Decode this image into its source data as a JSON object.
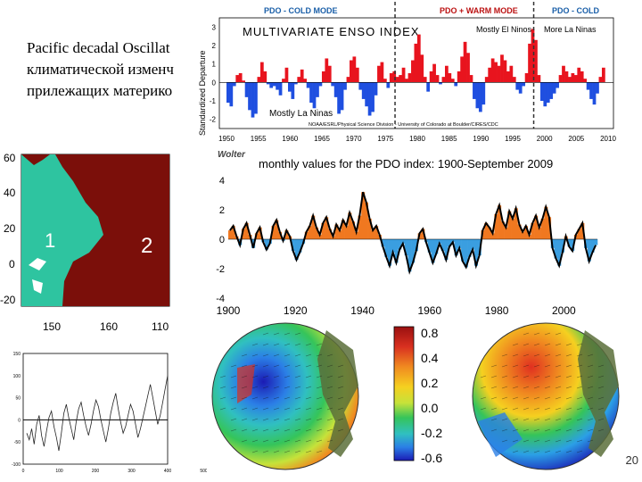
{
  "slide": {
    "title_lines": [
      "Pacific decadal Oscillat",
      "климатической изменч",
      "прилежащих материко"
    ],
    "page_number": "20"
  },
  "chart_data": [
    {
      "type": "map",
      "name": "region-map",
      "y_ticks": [
        "60",
        "40",
        "20",
        "0",
        "-20"
      ],
      "x_ticks": [
        "150",
        "160",
        "110"
      ],
      "region_labels": [
        "1",
        "2"
      ],
      "colors": {
        "region1": "#2ec4a0",
        "region2": "#7b0f0a"
      }
    },
    {
      "type": "line",
      "name": "bottom-left-series",
      "y_ticks": [
        "150",
        "100",
        "50",
        "0",
        "-50",
        "-100"
      ],
      "x_ticks": [
        "0",
        "100",
        "200",
        "300",
        "400",
        "500"
      ],
      "ylim": [
        -100,
        150
      ],
      "xlim": [
        0,
        500
      ],
      "values": [
        -30,
        -45,
        -20,
        -55,
        -10,
        10,
        -35,
        -60,
        -25,
        5,
        20,
        -15,
        -40,
        -70,
        -30,
        15,
        35,
        5,
        -20,
        -45,
        -5,
        25,
        40,
        10,
        -15,
        -35,
        -10,
        20,
        45,
        30,
        0,
        -25,
        -50,
        -20,
        15,
        40,
        60,
        25,
        -5,
        -30,
        -15,
        10,
        35,
        20,
        -10,
        -40,
        -20,
        5,
        30,
        55,
        80,
        50,
        20,
        -10,
        10,
        40,
        70,
        100
      ]
    },
    {
      "type": "area",
      "name": "mei-chart",
      "title": "MULTIVARIATE ENSO INDEX",
      "ylabel": "Standardized Departure",
      "mode_labels": [
        "PDO - COLD MODE",
        "PDO + WARM MODE",
        "PDO - COLD"
      ],
      "annotations": [
        "Mostly El Ninos",
        "More La Ninas",
        "Mostly La Ninas"
      ],
      "source": "NOAA/ESRL/Physical Science Division - University of Colorado at Boulder/CIRES/CDC",
      "author": "Wolter",
      "x_ticks": [
        "1950",
        "1955",
        "1960",
        "1965",
        "1970",
        "1975",
        "1980",
        "1985",
        "1990",
        "1995",
        "2000",
        "2005",
        "2010"
      ],
      "y_ticks": [
        "3",
        "2",
        "1",
        "0",
        "-1",
        "-2"
      ],
      "ylim": [
        -2.5,
        3.5
      ],
      "xlim": [
        1950,
        2010
      ],
      "values": [
        -1.1,
        -1.3,
        -0.2,
        0.4,
        0.5,
        0.1,
        -0.8,
        -1.5,
        -1.9,
        -1.7,
        0.3,
        1.1,
        0.6,
        -0.1,
        -0.3,
        -0.2,
        -0.4,
        -0.7,
        0.2,
        0.8,
        -0.5,
        -0.9,
        -0.1,
        0.3,
        0.7,
        0.2,
        -0.3,
        -1.1,
        -1.4,
        -0.8,
        -0.2,
        0.6,
        1.3,
        0.9,
        -0.2,
        -0.8,
        -1.7,
        -1.5,
        -0.4,
        0.3,
        1.2,
        1.4,
        0.8,
        -0.4,
        -0.9,
        -1.3,
        -1.8,
        -1.6,
        -0.7,
        0.9,
        1.1,
        0.2,
        -0.3,
        0.5,
        0.6,
        0.3,
        0.4,
        0.8,
        0.2,
        0.5,
        1.2,
        2.1,
        2.6,
        1.5,
        0.3,
        -0.5,
        0.6,
        1.0,
        0.4,
        -0.1,
        0.3,
        0.9,
        0.5,
        0.2,
        -0.2,
        0.6,
        1.4,
        2.2,
        1.6,
        0.4,
        -0.9,
        -1.4,
        -1.6,
        -1.2,
        0.3,
        0.8,
        1.3,
        1.1,
        0.9,
        1.5,
        1.2,
        0.6,
        0.9,
        0.3,
        -0.4,
        -0.6,
        -0.2,
        0.5,
        2.1,
        2.9,
        2.3,
        0.4,
        -1.0,
        -1.3,
        -1.1,
        -0.9,
        -0.6,
        -0.3,
        0.4,
        0.9,
        0.6,
        0.3,
        0.5,
        0.4,
        0.8,
        0.6,
        0.2,
        -0.4,
        -0.9,
        -1.2,
        -0.6,
        0.3,
        0.8
      ]
    },
    {
      "type": "area",
      "name": "pdo-chart",
      "title": "monthly values for the PDO index: 1900-September 2009",
      "x_ticks": [
        "1900",
        "1920",
        "1940",
        "1960",
        "1980",
        "2000"
      ],
      "y_ticks": [
        "4",
        "2",
        "0",
        "-2",
        "-4"
      ],
      "ylim": [
        -4,
        4
      ],
      "xlim": [
        1900,
        2010
      ],
      "values": [
        0.6,
        0.9,
        0.2,
        -0.4,
        0.7,
        1.1,
        0.3,
        -0.6,
        0.4,
        0.8,
        -0.2,
        -0.7,
        -0.3,
        0.9,
        1.3,
        0.5,
        -0.1,
        0.6,
        0.2,
        -0.8,
        -1.4,
        -0.9,
        -0.3,
        0.5,
        0.9,
        1.6,
        0.8,
        0.3,
        1.1,
        1.5,
        0.7,
        0.2,
        1.0,
        0.6,
        1.3,
        0.9,
        1.8,
        1.2,
        0.5,
        1.6,
        3.2,
        2.5,
        1.4,
        0.6,
        0.9,
        0.3,
        -0.5,
        -1.2,
        -1.8,
        -0.9,
        -1.6,
        -0.7,
        -0.3,
        -1.1,
        -2.2,
        -1.6,
        -0.8,
        0.4,
        0.7,
        -0.2,
        -0.9,
        -1.6,
        -1.0,
        -0.3,
        -0.8,
        -1.4,
        -0.5,
        -0.2,
        -1.1,
        -0.6,
        -1.5,
        -1.9,
        -1.2,
        -0.7,
        -1.8,
        -1.1,
        0.6,
        1.1,
        0.8,
        0.4,
        1.7,
        2.3,
        1.2,
        0.8,
        1.9,
        1.4,
        2.1,
        1.0,
        0.5,
        0.9,
        0.3,
        1.1,
        1.6,
        0.8,
        1.4,
        2.2,
        1.5,
        -0.6,
        -1.3,
        -1.8,
        -0.9,
        0.2,
        -0.5,
        -0.8,
        0.3,
        0.7,
        1.1,
        -0.6,
        -1.5,
        -0.9,
        -0.4
      ]
    },
    {
      "type": "heatmap",
      "name": "sst-maps",
      "colorbar_ticks": [
        "0.8",
        "0.4",
        "0.2",
        "0.0",
        "-0.2",
        "-0.6"
      ],
      "colors": [
        "#1b1bb4",
        "#2b7fe6",
        "#30c0c0",
        "#35c45a",
        "#c6e23a",
        "#f5d020",
        "#f08a20",
        "#d93020",
        "#9a1010"
      ]
    }
  ]
}
